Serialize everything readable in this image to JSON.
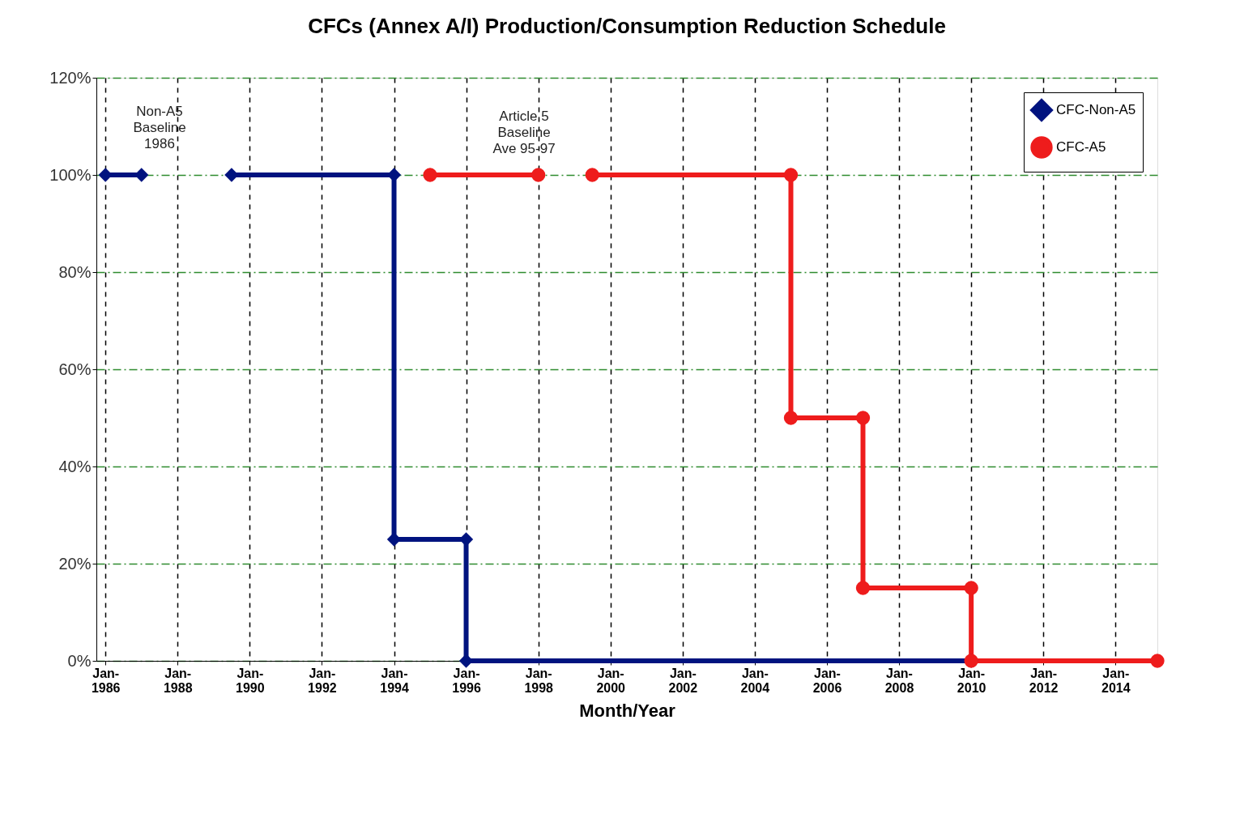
{
  "chart_data": {
    "type": "line",
    "title": "CFCs (Annex A/I) Production/Consumption Reduction Schedule",
    "xlabel": "Month/Year",
    "series": [
      {
        "name": "CFC-Non-A5",
        "color": "#00137f",
        "marker": "diamond",
        "x": [
          "1986-01",
          "1987-01",
          "1988-04",
          "1989-07",
          "1994-01",
          "1994-01",
          "1996-01",
          "1996-01",
          "2010-01"
        ],
        "values": [
          100,
          100,
          null,
          100,
          100,
          25,
          25,
          0,
          0
        ]
      },
      {
        "name": "CFC-A5",
        "color": "#ee1c1c",
        "marker": "circle",
        "x": [
          "1995-01",
          "1998-01",
          "1998-10",
          "1999-07",
          "2005-01",
          "2005-01",
          "2007-01",
          "2007-01",
          "2010-01",
          "2010-01",
          "2015-03"
        ],
        "values": [
          100,
          100,
          null,
          100,
          100,
          50,
          50,
          15,
          15,
          0,
          0
        ]
      }
    ],
    "xlim": [
      "1985-10",
      "2015-03"
    ],
    "xticks": [
      {
        "value": "1986-01",
        "label": "Jan-1986"
      },
      {
        "value": "1988-01",
        "label": "Jan-1988"
      },
      {
        "value": "1990-01",
        "label": "Jan-1990"
      },
      {
        "value": "1992-01",
        "label": "Jan-1992"
      },
      {
        "value": "1994-01",
        "label": "Jan-1994"
      },
      {
        "value": "1996-01",
        "label": "Jan-1996"
      },
      {
        "value": "1998-01",
        "label": "Jan-1998"
      },
      {
        "value": "2000-01",
        "label": "Jan-2000"
      },
      {
        "value": "2002-01",
        "label": "Jan-2002"
      },
      {
        "value": "2004-01",
        "label": "Jan-2004"
      },
      {
        "value": "2006-01",
        "label": "Jan-2006"
      },
      {
        "value": "2008-01",
        "label": "Jan-2008"
      },
      {
        "value": "2010-01",
        "label": "Jan-2010"
      },
      {
        "value": "2012-01",
        "label": "Jan-2012"
      },
      {
        "value": "2014-01",
        "label": "Jan-2014"
      }
    ],
    "ylim": [
      0,
      120
    ],
    "yticks": [
      {
        "value": 0,
        "label": "0%"
      },
      {
        "value": 20,
        "label": "20%"
      },
      {
        "value": 40,
        "label": "40%"
      },
      {
        "value": 60,
        "label": "60%"
      },
      {
        "value": 80,
        "label": "80%"
      },
      {
        "value": 100,
        "label": "100%"
      },
      {
        "value": 120,
        "label": "120%"
      }
    ],
    "annotations": [
      "Non-A5 Baseline 1986",
      "Article 5 Baseline Ave 95-97"
    ],
    "grid": true,
    "legend": "top right",
    "line_style": "solid"
  }
}
